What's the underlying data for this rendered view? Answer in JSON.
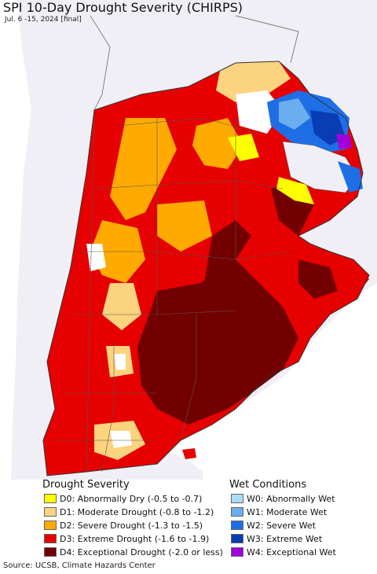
{
  "title": "SPI 10-Day Drought Severity (CHIRPS)",
  "subtitle": "Jul. 6 -15, 2024 [final]",
  "colors": {
    "background_land": "#f0eff5",
    "ocean": "#ffffff",
    "borders": "#555555"
  },
  "legend": {
    "drought": {
      "heading": "Drought Severity",
      "items": [
        {
          "label": "D0: Abnormally Dry (-0.5 to -0.7)",
          "color": "#ffff00"
        },
        {
          "label": "D1: Moderate Drought (-0.8 to -1.2)",
          "color": "#fcd37f"
        },
        {
          "label": "D2: Severe Drought (-1.3 to -1.5)",
          "color": "#ffaa00"
        },
        {
          "label": "D3: Extreme Drought (-1.6 to -1.9)",
          "color": "#e60000"
        },
        {
          "label": "D4: Exceptional Drought (-2.0 or less)",
          "color": "#730000"
        }
      ]
    },
    "wet": {
      "heading": "Wet Conditions",
      "items": [
        {
          "label": "W0: Abnormally Wet",
          "color": "#aadcf8"
        },
        {
          "label": "W1: Moderate Wet",
          "color": "#6aaef0"
        },
        {
          "label": "W2: Severe Wet",
          "color": "#1e6ee6"
        },
        {
          "label": "W3: Extreme Wet",
          "color": "#0a3cb4"
        },
        {
          "label": "W4: Exceptional Wet",
          "color": "#a000dc"
        }
      ]
    }
  },
  "source": "Source: UCSB, Climate Hazards Center"
}
